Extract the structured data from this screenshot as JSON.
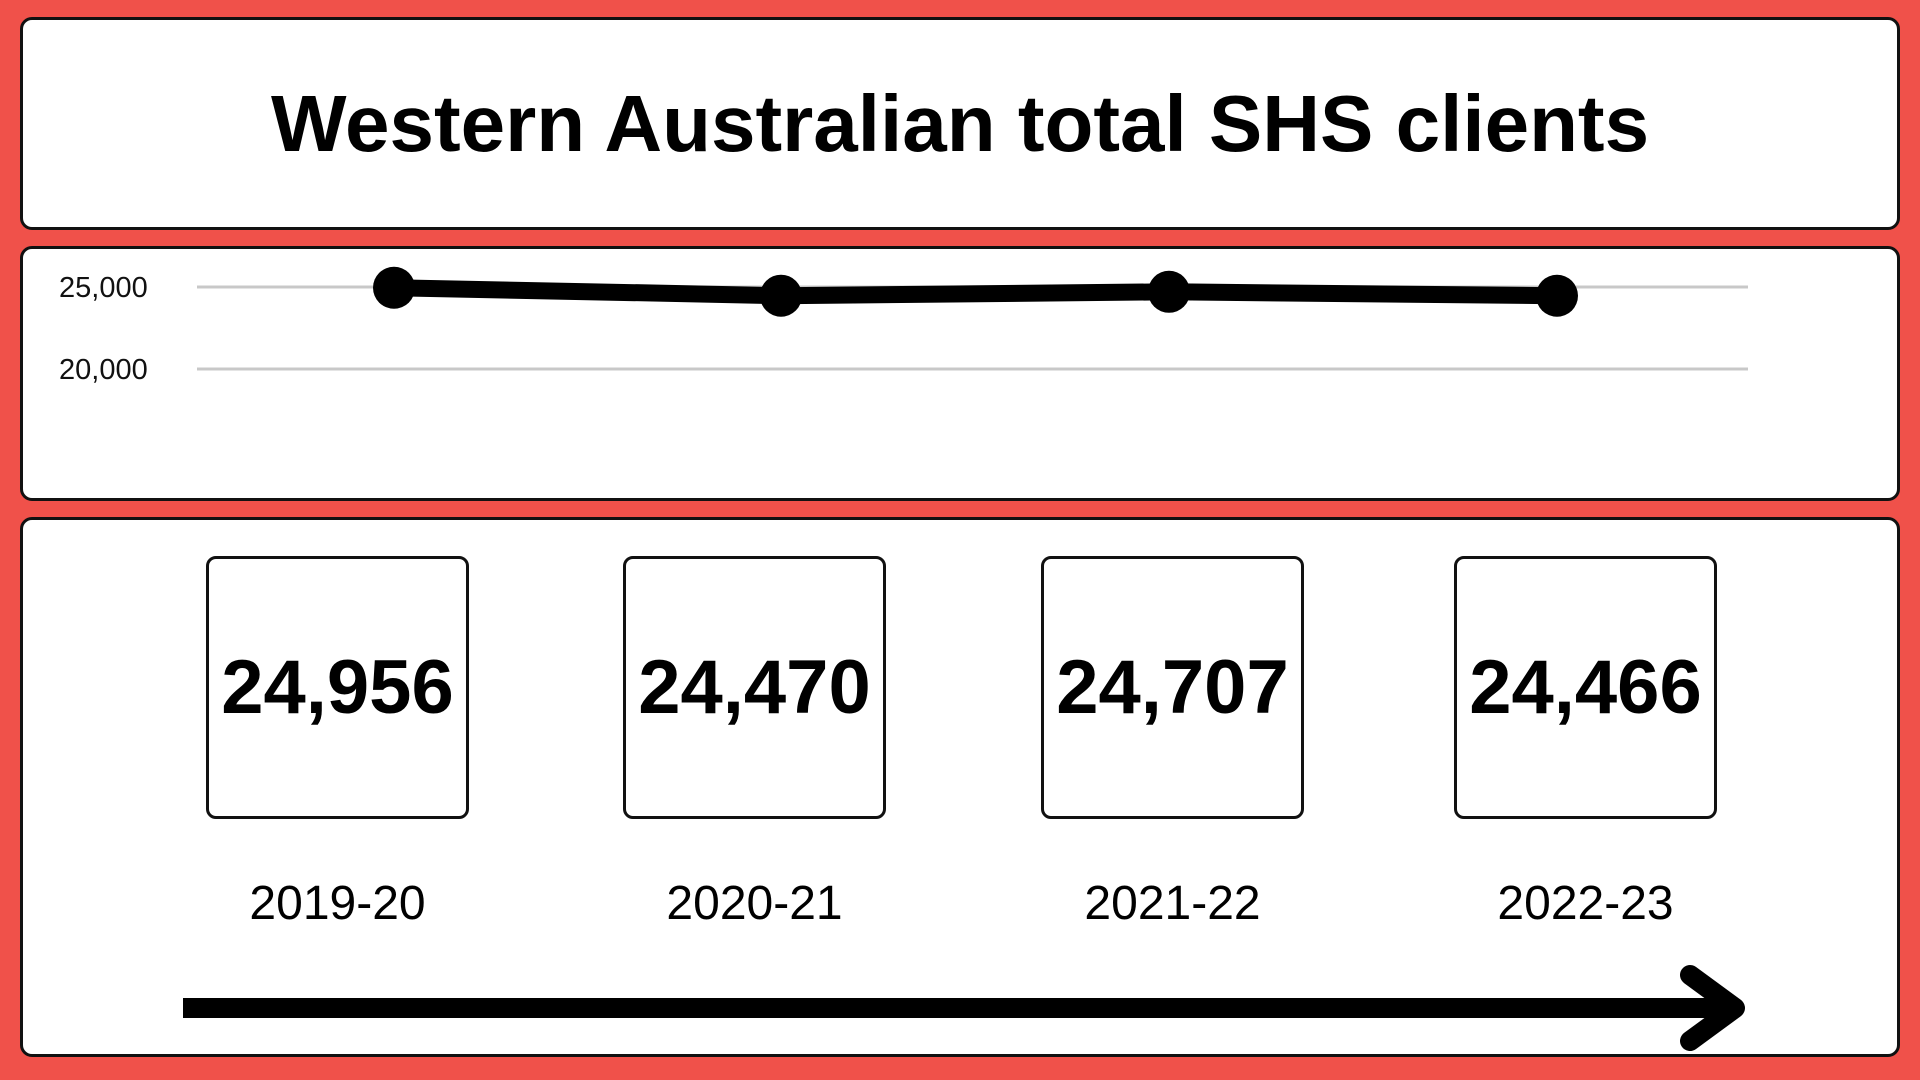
{
  "chart_data": {
    "type": "line",
    "title": "Western Australian total SHS clients",
    "categories": [
      "2019-20",
      "2020-21",
      "2021-22",
      "2022-23"
    ],
    "series": [
      {
        "values": [
          24956,
          24470,
          24707,
          24466
        ]
      }
    ],
    "value_labels": [
      "24,956",
      "24,470",
      "24,707",
      "24,466"
    ],
    "y_ticks": [
      {
        "value": 25000,
        "label": "25,000"
      },
      {
        "value": 20000,
        "label": "20,000"
      }
    ],
    "ylim": [
      20000,
      25000
    ],
    "grid": true,
    "xlabel": "",
    "ylabel": ""
  },
  "colors": {
    "background": "#f0514a",
    "line": "#000000",
    "grid": "#c8c8c8"
  },
  "icons": {
    "timeline_arrow": "arrow-right-icon"
  }
}
